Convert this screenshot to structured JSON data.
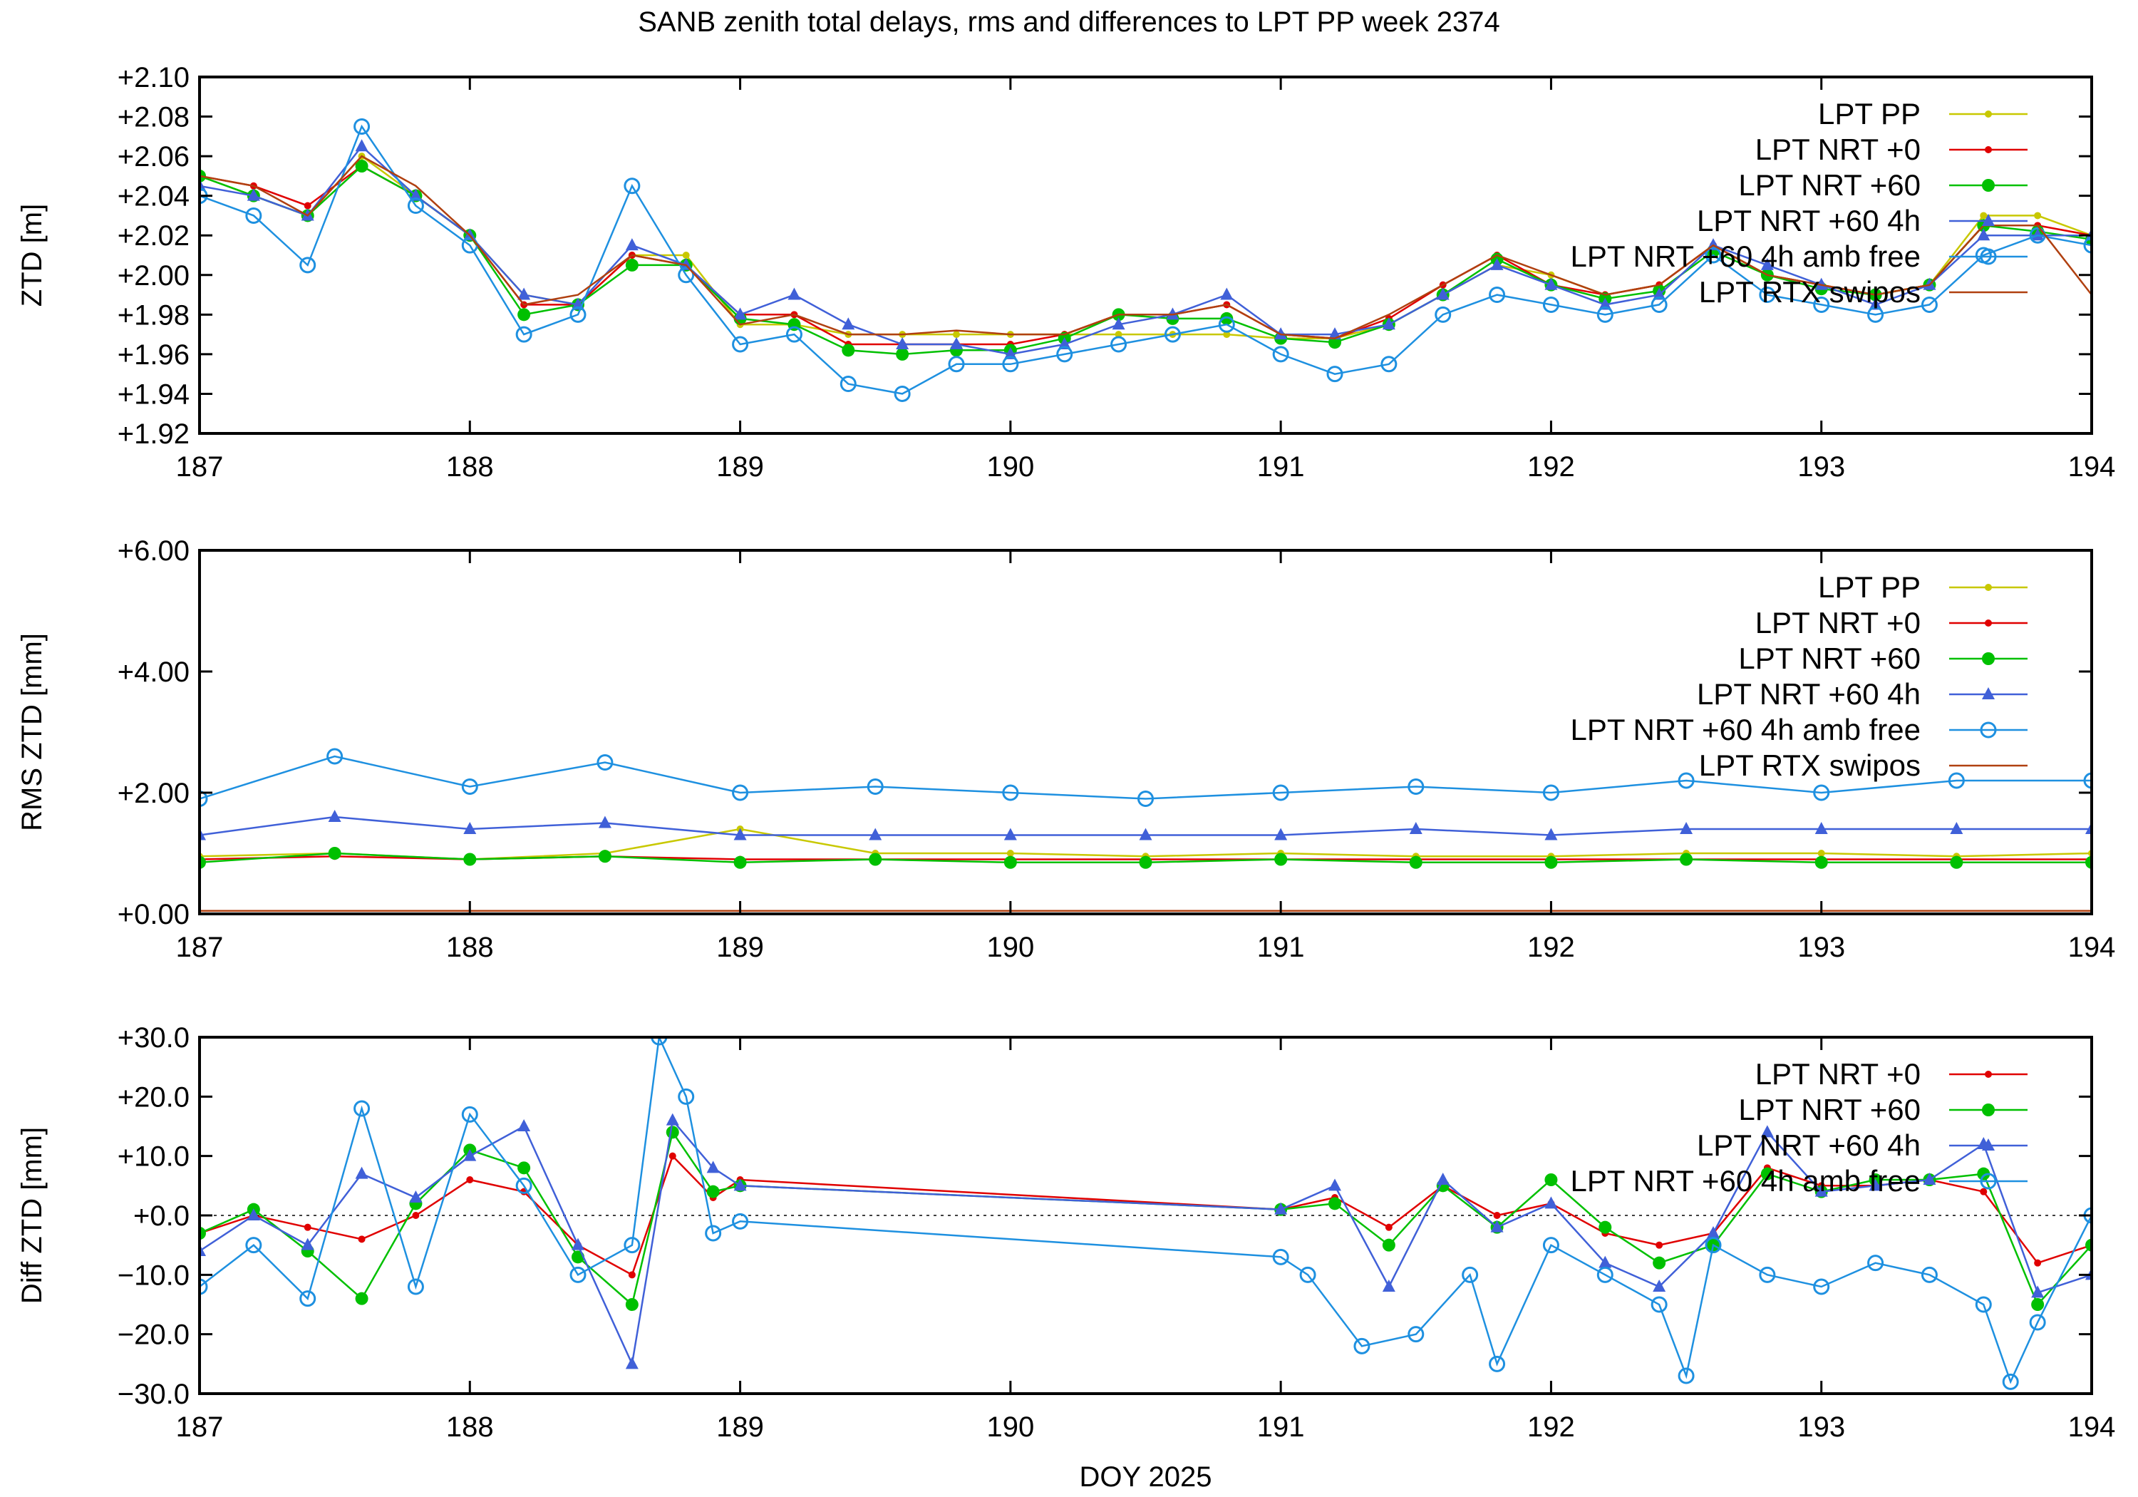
{
  "title": "SANB zenith total delays, rms and differences to LPT PP week 2374",
  "series_styles": [
    {
      "name": "LPT PP",
      "color": "#c8c800",
      "marker": "dot"
    },
    {
      "name": "LPT NRT +0",
      "color": "#e00000",
      "marker": "dot"
    },
    {
      "name": "LPT NRT +60",
      "color": "#00c000",
      "marker": "circle"
    },
    {
      "name": "LPT NRT +60 4h",
      "color": "#4060d8",
      "marker": "triangle"
    },
    {
      "name": "LPT NRT +60 4h amb free",
      "color": "#1e90e0",
      "marker": "opencircle"
    },
    {
      "name": "LPT RTX swipos",
      "color": "#b04010",
      "marker": "none"
    }
  ],
  "chart_data": [
    {
      "type": "line",
      "ylabel": "ZTD [m]",
      "xlabel": "",
      "xlim": [
        187,
        194
      ],
      "ylim": [
        1.92,
        2.1
      ],
      "xticks": [
        "187",
        "188",
        "189",
        "190",
        "191",
        "192",
        "193",
        "194"
      ],
      "yticks": [
        "+1.92",
        "+1.94",
        "+1.96",
        "+1.98",
        "+2.00",
        "+2.02",
        "+2.04",
        "+2.06",
        "+2.08",
        "+2.10"
      ],
      "legend": [
        "LPT PP",
        "LPT NRT +0",
        "LPT NRT +60",
        "LPT NRT +60 4h",
        "LPT NRT +60 4h amb free",
        "LPT RTX swipos"
      ],
      "series": [
        {
          "name": "LPT PP",
          "x": [
            187.0,
            187.2,
            187.4,
            187.6,
            187.8,
            188.0,
            188.2,
            188.4,
            188.6,
            188.8,
            189.0,
            189.2,
            189.4,
            189.6,
            189.8,
            190.0,
            190.2,
            190.4,
            190.6,
            190.8,
            191.0,
            191.2,
            191.4,
            191.6,
            191.8,
            192.0,
            192.2,
            192.4,
            192.6,
            192.8,
            193.0,
            193.2,
            193.4,
            193.6,
            193.8,
            194.0
          ],
          "y": [
            2.05,
            2.04,
            2.03,
            2.06,
            2.04,
            2.02,
            1.99,
            1.985,
            2.01,
            2.01,
            1.975,
            1.975,
            1.97,
            1.97,
            1.97,
            1.97,
            1.97,
            1.97,
            1.97,
            1.97,
            1.968,
            1.968,
            1.975,
            1.99,
            2.005,
            2.0,
            1.99,
            1.995,
            2.015,
            2.0,
            1.995,
            1.99,
            1.995,
            2.03,
            2.03,
            2.02
          ]
        },
        {
          "name": "LPT NRT +0",
          "x": [
            187.0,
            187.2,
            187.4,
            187.6,
            187.8,
            188.0,
            188.2,
            188.4,
            188.6,
            188.8,
            189.0,
            189.2,
            189.4,
            189.6,
            189.8,
            190.0,
            190.2,
            190.4,
            190.6,
            190.8,
            191.0,
            191.2,
            191.4,
            191.6,
            191.8,
            192.0,
            192.2,
            192.4,
            192.6,
            192.8,
            193.0,
            193.2,
            193.4,
            193.6,
            193.8,
            194.0
          ],
          "y": [
            2.05,
            2.045,
            2.035,
            2.055,
            2.04,
            2.02,
            1.985,
            1.985,
            2.01,
            2.005,
            1.98,
            1.98,
            1.965,
            1.965,
            1.965,
            1.965,
            1.97,
            1.98,
            1.98,
            1.985,
            1.97,
            1.968,
            1.978,
            1.995,
            2.01,
            1.995,
            1.99,
            1.995,
            2.015,
            2.0,
            1.995,
            1.99,
            1.995,
            2.025,
            2.025,
            2.02
          ]
        },
        {
          "name": "LPT NRT +60",
          "x": [
            187.0,
            187.2,
            187.4,
            187.6,
            187.8,
            188.0,
            188.2,
            188.4,
            188.6,
            188.8,
            189.0,
            189.2,
            189.4,
            189.6,
            189.8,
            190.0,
            190.2,
            190.4,
            190.6,
            190.8,
            191.0,
            191.2,
            191.4,
            191.6,
            191.8,
            192.0,
            192.2,
            192.4,
            192.6,
            192.8,
            193.0,
            193.2,
            193.4,
            193.6,
            193.8,
            194.0
          ],
          "y": [
            2.05,
            2.04,
            2.03,
            2.055,
            2.04,
            2.02,
            1.98,
            1.985,
            2.005,
            2.005,
            1.978,
            1.975,
            1.962,
            1.96,
            1.962,
            1.962,
            1.968,
            1.98,
            1.978,
            1.978,
            1.968,
            1.966,
            1.975,
            1.99,
            2.008,
            1.995,
            1.988,
            1.992,
            2.012,
            2.0,
            1.993,
            1.99,
            1.995,
            2.025,
            2.022,
            2.018
          ]
        },
        {
          "name": "LPT NRT +60 4h",
          "x": [
            187.0,
            187.2,
            187.4,
            187.6,
            187.8,
            188.0,
            188.2,
            188.4,
            188.6,
            188.8,
            189.0,
            189.2,
            189.4,
            189.6,
            189.8,
            190.0,
            190.2,
            190.4,
            190.6,
            190.8,
            191.0,
            191.2,
            191.4,
            191.6,
            191.8,
            192.0,
            192.2,
            192.4,
            192.6,
            192.8,
            193.0,
            193.2,
            193.4,
            193.6,
            193.8,
            194.0
          ],
          "y": [
            2.045,
            2.04,
            2.03,
            2.065,
            2.04,
            2.02,
            1.99,
            1.985,
            2.015,
            2.005,
            1.98,
            1.99,
            1.975,
            1.965,
            1.965,
            1.96,
            1.965,
            1.975,
            1.98,
            1.99,
            1.97,
            1.97,
            1.975,
            1.99,
            2.005,
            1.995,
            1.985,
            1.99,
            2.015,
            2.005,
            1.995,
            1.985,
            1.995,
            2.02,
            2.02,
            2.02
          ]
        },
        {
          "name": "LPT NRT +60 4h amb free",
          "x": [
            187.0,
            187.2,
            187.4,
            187.6,
            187.8,
            188.0,
            188.2,
            188.4,
            188.6,
            188.8,
            189.0,
            189.2,
            189.4,
            189.6,
            189.8,
            190.0,
            190.2,
            190.4,
            190.6,
            190.8,
            191.0,
            191.2,
            191.4,
            191.6,
            191.8,
            192.0,
            192.2,
            192.4,
            192.6,
            192.8,
            193.0,
            193.2,
            193.4,
            193.6,
            193.8,
            194.0
          ],
          "y": [
            2.04,
            2.03,
            2.005,
            2.075,
            2.035,
            2.015,
            1.97,
            1.98,
            2.045,
            2.0,
            1.965,
            1.97,
            1.945,
            1.94,
            1.955,
            1.955,
            1.96,
            1.965,
            1.97,
            1.975,
            1.96,
            1.95,
            1.955,
            1.98,
            1.99,
            1.985,
            1.98,
            1.985,
            2.01,
            1.99,
            1.985,
            1.98,
            1.985,
            2.01,
            2.02,
            2.015
          ]
        },
        {
          "name": "LPT RTX swipos",
          "x": [
            187.0,
            187.2,
            187.4,
            187.6,
            187.8,
            188.0,
            188.2,
            188.4,
            188.6,
            188.8,
            189.0,
            189.2,
            189.4,
            189.6,
            189.8,
            190.0,
            190.2,
            190.4,
            190.6,
            190.8,
            191.0,
            191.2,
            191.4,
            191.6,
            191.8,
            192.0,
            192.2,
            192.4,
            192.6,
            192.8,
            193.0,
            193.2,
            193.4,
            193.6,
            193.8,
            194.0
          ],
          "y": [
            2.05,
            2.045,
            2.03,
            2.06,
            2.045,
            2.02,
            1.985,
            1.99,
            2.01,
            2.005,
            1.975,
            1.98,
            1.97,
            1.97,
            1.972,
            1.97,
            1.97,
            1.98,
            1.98,
            1.985,
            1.97,
            1.968,
            1.98,
            1.995,
            2.01,
            2.0,
            1.99,
            1.995,
            2.015,
            2.0,
            1.995,
            1.99,
            1.995,
            2.025,
            2.025,
            1.99
          ]
        }
      ]
    },
    {
      "type": "line",
      "ylabel": "RMS ZTD [mm]",
      "xlabel": "",
      "xlim": [
        187,
        194
      ],
      "ylim": [
        0.0,
        6.0
      ],
      "xticks": [
        "187",
        "188",
        "189",
        "190",
        "191",
        "192",
        "193",
        "194"
      ],
      "yticks": [
        "+0.00",
        "+2.00",
        "+4.00",
        "+6.00"
      ],
      "legend": [
        "LPT PP",
        "LPT NRT +0",
        "LPT NRT +60",
        "LPT NRT +60 4h",
        "LPT NRT +60 4h amb free",
        "LPT RTX swipos"
      ],
      "series": [
        {
          "name": "LPT PP",
          "x": [
            187.0,
            187.5,
            188.0,
            188.5,
            189.0,
            189.5,
            190.0,
            190.5,
            191.0,
            191.5,
            192.0,
            192.5,
            193.0,
            193.5,
            194.0
          ],
          "y": [
            0.95,
            1.0,
            0.9,
            1.0,
            1.4,
            1.0,
            1.0,
            0.95,
            1.0,
            0.95,
            0.95,
            1.0,
            1.0,
            0.95,
            1.0
          ]
        },
        {
          "name": "LPT NRT +0",
          "x": [
            187.0,
            187.5,
            188.0,
            188.5,
            189.0,
            189.5,
            190.0,
            190.5,
            191.0,
            191.5,
            192.0,
            192.5,
            193.0,
            193.5,
            194.0
          ],
          "y": [
            0.9,
            0.95,
            0.9,
            0.95,
            0.9,
            0.9,
            0.9,
            0.9,
            0.9,
            0.9,
            0.9,
            0.9,
            0.9,
            0.9,
            0.9
          ]
        },
        {
          "name": "LPT NRT +60",
          "x": [
            187.0,
            187.5,
            188.0,
            188.5,
            189.0,
            189.5,
            190.0,
            190.5,
            191.0,
            191.5,
            192.0,
            192.5,
            193.0,
            193.5,
            194.0
          ],
          "y": [
            0.85,
            1.0,
            0.9,
            0.95,
            0.85,
            0.9,
            0.85,
            0.85,
            0.9,
            0.85,
            0.85,
            0.9,
            0.85,
            0.85,
            0.85
          ]
        },
        {
          "name": "LPT NRT +60 4h",
          "x": [
            187.0,
            187.5,
            188.0,
            188.5,
            189.0,
            189.5,
            190.0,
            190.5,
            191.0,
            191.5,
            192.0,
            192.5,
            193.0,
            193.5,
            194.0
          ],
          "y": [
            1.3,
            1.6,
            1.4,
            1.5,
            1.3,
            1.3,
            1.3,
            1.3,
            1.3,
            1.4,
            1.3,
            1.4,
            1.4,
            1.4,
            1.4
          ]
        },
        {
          "name": "LPT NRT +60 4h amb free",
          "x": [
            187.0,
            187.5,
            188.0,
            188.5,
            189.0,
            189.5,
            190.0,
            190.5,
            191.0,
            191.5,
            192.0,
            192.5,
            193.0,
            193.5,
            194.0
          ],
          "y": [
            1.9,
            2.6,
            2.1,
            2.5,
            2.0,
            2.1,
            2.0,
            1.9,
            2.0,
            2.1,
            2.0,
            2.2,
            2.0,
            2.2,
            2.2
          ]
        },
        {
          "name": "LPT RTX swipos",
          "x": [
            187.0,
            187.5,
            188.0,
            188.5,
            189.0,
            189.5,
            190.0,
            190.5,
            191.0,
            191.5,
            192.0,
            192.5,
            193.0,
            193.5,
            194.0
          ],
          "y": [
            0.05,
            0.05,
            0.05,
            0.05,
            0.05,
            0.05,
            0.05,
            0.05,
            0.05,
            0.05,
            0.05,
            0.05,
            0.05,
            0.05,
            0.05
          ]
        }
      ]
    },
    {
      "type": "line",
      "ylabel": "Diff ZTD [mm]",
      "xlabel": "DOY 2025",
      "xlim": [
        187,
        194
      ],
      "ylim": [
        -30.0,
        30.0
      ],
      "xticks": [
        "187",
        "188",
        "189",
        "190",
        "191",
        "192",
        "193",
        "194"
      ],
      "yticks": [
        "−30.0",
        "−20.0",
        "−10.0",
        "+0.0",
        "+10.0",
        "+20.0",
        "+30.0"
      ],
      "legend": [
        "LPT NRT +0",
        "LPT NRT +60",
        "LPT NRT +60 4h",
        "LPT NRT +60 4h amb free"
      ],
      "series": [
        {
          "name": "LPT NRT +0",
          "x": [
            187.0,
            187.2,
            187.4,
            187.6,
            187.8,
            188.0,
            188.2,
            188.4,
            188.6,
            188.75,
            188.9,
            189.0,
            191.0,
            191.2,
            191.4,
            191.6,
            191.8,
            192.0,
            192.2,
            192.4,
            192.6,
            192.8,
            193.0,
            193.2,
            193.4,
            193.6,
            193.8,
            194.0
          ],
          "y": [
            -3,
            0,
            -2,
            -4,
            0,
            6,
            4,
            -5,
            -10,
            10,
            3,
            6,
            1,
            3,
            -2,
            5,
            0,
            2,
            -3,
            -5,
            -3,
            8,
            5,
            5,
            6,
            4,
            -8,
            -5
          ]
        },
        {
          "name": "LPT NRT +60",
          "x": [
            187.0,
            187.2,
            187.4,
            187.6,
            187.8,
            188.0,
            188.2,
            188.4,
            188.6,
            188.75,
            188.9,
            189.0,
            191.0,
            191.2,
            191.4,
            191.6,
            191.8,
            192.0,
            192.2,
            192.4,
            192.6,
            192.8,
            193.0,
            193.2,
            193.4,
            193.6,
            193.8,
            194.0
          ],
          "y": [
            -3,
            1,
            -6,
            -14,
            2,
            11,
            8,
            -7,
            -15,
            14,
            4,
            5,
            1,
            2,
            -5,
            5,
            -2,
            6,
            -2,
            -8,
            -5,
            7,
            4,
            6,
            6,
            7,
            -15,
            -5
          ]
        },
        {
          "name": "LPT NRT +60 4h",
          "x": [
            187.0,
            187.2,
            187.4,
            187.6,
            187.8,
            188.0,
            188.2,
            188.4,
            188.6,
            188.75,
            188.9,
            189.0,
            191.0,
            191.2,
            191.4,
            191.6,
            191.8,
            192.0,
            192.2,
            192.4,
            192.6,
            192.8,
            193.0,
            193.2,
            193.4,
            193.6,
            193.8,
            194.0
          ],
          "y": [
            -6,
            0,
            -5,
            7,
            3,
            10,
            15,
            -5,
            -25,
            16,
            8,
            5,
            1,
            5,
            -12,
            6,
            -2,
            2,
            -8,
            -12,
            -3,
            14,
            4,
            5,
            6,
            12,
            -13,
            -10
          ]
        },
        {
          "name": "LPT NRT +60 4h amb free",
          "x": [
            187.0,
            187.2,
            187.4,
            187.6,
            187.8,
            188.0,
            188.2,
            188.4,
            188.6,
            188.7,
            188.8,
            188.9,
            189.0,
            191.0,
            191.1,
            191.3,
            191.5,
            191.7,
            191.8,
            192.0,
            192.2,
            192.4,
            192.5,
            192.6,
            192.8,
            193.0,
            193.2,
            193.4,
            193.6,
            193.7,
            193.8,
            194.0
          ],
          "y": [
            -12,
            -5,
            -14,
            18,
            -12,
            17,
            5,
            -10,
            -5,
            30,
            20,
            -3,
            -1,
            -7,
            -10,
            -22,
            -20,
            -10,
            -25,
            -5,
            -10,
            -15,
            -27,
            -5,
            -10,
            -12,
            -8,
            -10,
            -15,
            -28,
            -18,
            0
          ]
        }
      ]
    }
  ]
}
